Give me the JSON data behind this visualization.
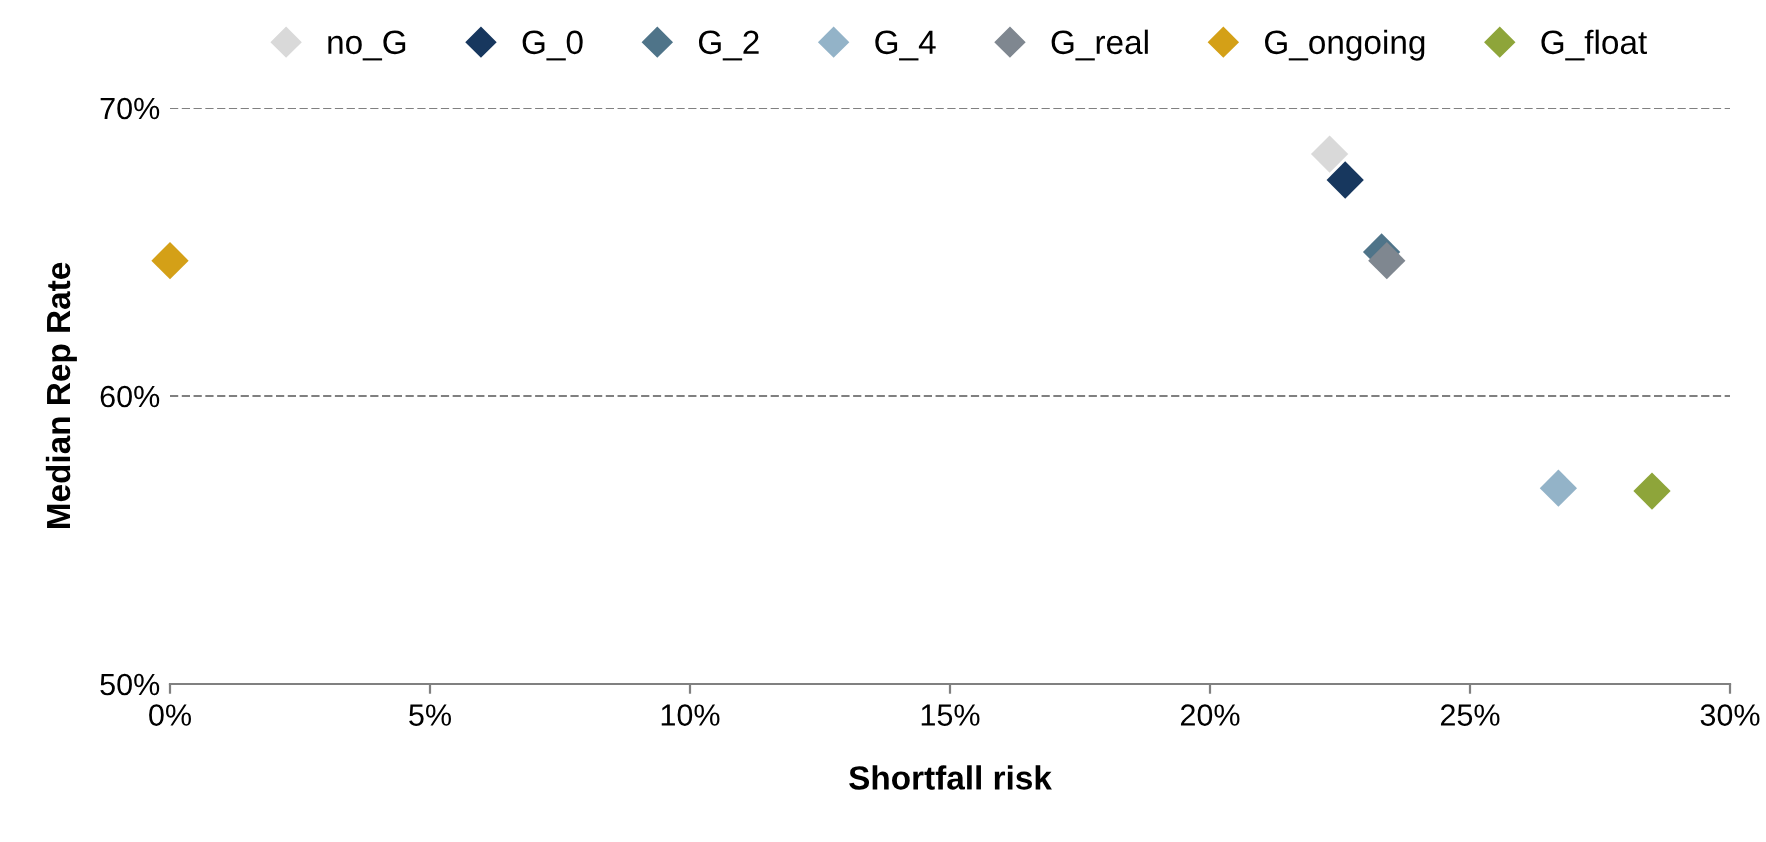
{
  "chart_data": {
    "type": "scatter",
    "xlabel": "Shortfall risk",
    "ylabel": "Median Rep Rate",
    "series": [
      {
        "name": "no_G",
        "color": "#d9d9d9",
        "x": [
          22.3
        ],
        "values": [
          68.4
        ]
      },
      {
        "name": "G_0",
        "color": "#17375e",
        "x": [
          22.6
        ],
        "values": [
          67.5
        ]
      },
      {
        "name": "G_2",
        "color": "#4f7489",
        "x": [
          23.3
        ],
        "values": [
          65.0
        ]
      },
      {
        "name": "G_4",
        "color": "#93b3c8",
        "x": [
          26.7
        ],
        "values": [
          56.8
        ]
      },
      {
        "name": "G_real",
        "color": "#7f8790",
        "x": [
          23.4
        ],
        "values": [
          64.7
        ]
      },
      {
        "name": "G_ongoing",
        "color": "#d4a017",
        "x": [
          0.0
        ],
        "values": [
          64.7
        ]
      },
      {
        "name": "G_float",
        "color": "#8ea53a",
        "x": [
          28.5
        ],
        "values": [
          56.7
        ]
      }
    ],
    "xlim": [
      0,
      30
    ],
    "ylim": [
      50,
      70
    ],
    "xticks": [
      {
        "value": 0,
        "label": "0%"
      },
      {
        "value": 5,
        "label": "5%"
      },
      {
        "value": 10,
        "label": "10%"
      },
      {
        "value": 15,
        "label": "15%"
      },
      {
        "value": 20,
        "label": "20%"
      },
      {
        "value": 25,
        "label": "25%"
      },
      {
        "value": 30,
        "label": "30%"
      }
    ],
    "yticks": [
      {
        "value": 50,
        "label": "50%"
      },
      {
        "value": 60,
        "label": "60%"
      },
      {
        "value": 70,
        "label": "70%"
      }
    ],
    "grid": "y",
    "legend": "top",
    "marker": "diamond"
  }
}
